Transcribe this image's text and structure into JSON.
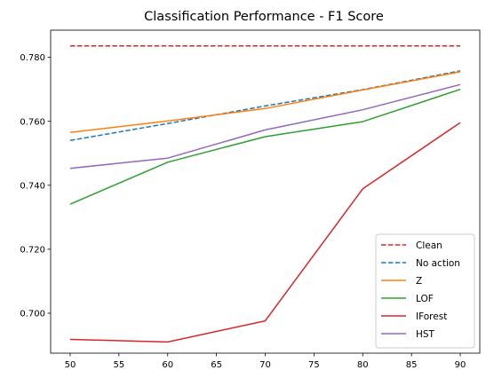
{
  "chart_data": {
    "type": "line",
    "title": "Classification Performance - F1 Score",
    "xlabel": "",
    "ylabel": "",
    "x": [
      50,
      60,
      70,
      80,
      90
    ],
    "xlim": [
      48,
      92
    ],
    "ylim": [
      0.6875,
      0.7885
    ],
    "xticks": [
      50,
      55,
      60,
      65,
      70,
      75,
      80,
      85,
      90
    ],
    "yticks": [
      0.7,
      0.72,
      0.74,
      0.76,
      0.78
    ],
    "ytick_labels": [
      "0.700",
      "0.720",
      "0.740",
      "0.760",
      "0.780"
    ],
    "grid": false,
    "legend_position": "lower-right",
    "series": [
      {
        "name": "Clean",
        "color": "#d62728",
        "dash": "dashed",
        "values": [
          0.7836,
          0.7836,
          0.7836,
          0.7836,
          0.7836
        ]
      },
      {
        "name": "No action",
        "color": "#1f77b4",
        "dash": "dashed",
        "values": [
          0.754,
          0.7593,
          0.7648,
          0.7699,
          0.7758
        ]
      },
      {
        "name": "Z",
        "color": "#ff7f0e",
        "dash": "solid",
        "values": [
          0.7565,
          0.7601,
          0.764,
          0.7698,
          0.7755
        ]
      },
      {
        "name": "LOF",
        "color": "#2ca02c",
        "dash": "solid",
        "values": [
          0.7341,
          0.7472,
          0.7552,
          0.7599,
          0.77
        ]
      },
      {
        "name": "IForest",
        "color": "#d62728",
        "dash": "solid",
        "values": [
          0.6918,
          0.691,
          0.6976,
          0.7389,
          0.7596
        ]
      },
      {
        "name": "HST",
        "color": "#9467bd",
        "dash": "solid",
        "values": [
          0.7453,
          0.7485,
          0.7573,
          0.7636,
          0.7715
        ]
      }
    ]
  }
}
